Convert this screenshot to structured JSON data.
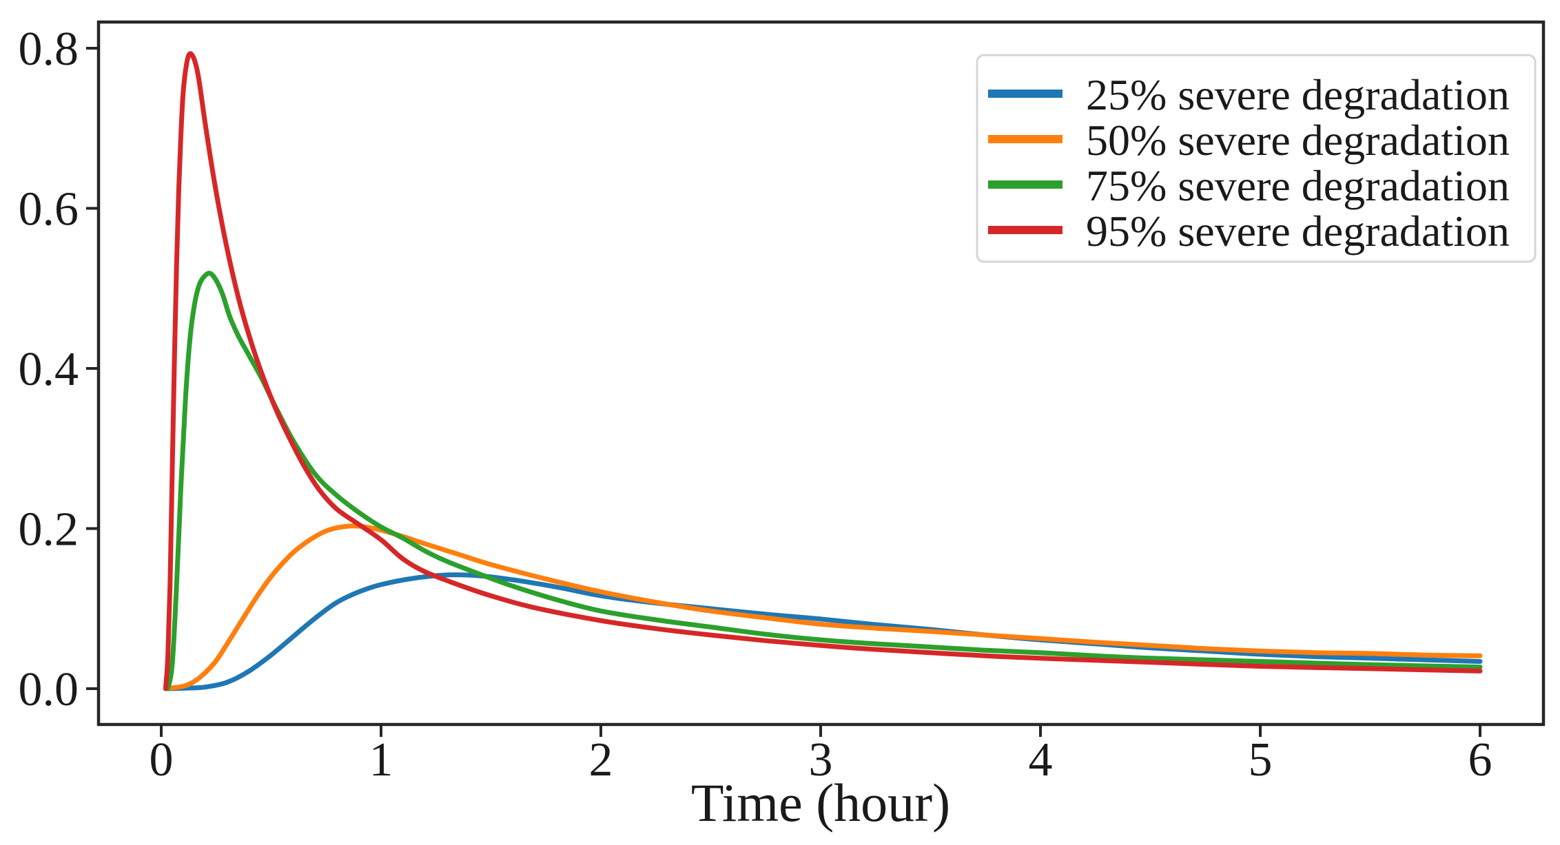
{
  "chart_data": {
    "type": "line",
    "title": "",
    "xlabel": "Time (hour)",
    "ylabel": "",
    "x_ticks": [
      "0",
      "1",
      "2",
      "3",
      "4",
      "5",
      "6"
    ],
    "x_tick_values": [
      0,
      1,
      2,
      3,
      4,
      5,
      6
    ],
    "y_ticks": [
      "0.0",
      "0.2",
      "0.4",
      "0.6",
      "0.8"
    ],
    "y_tick_values": [
      0.0,
      0.2,
      0.4,
      0.6,
      0.8
    ],
    "xlim": [
      -0.285,
      6.285
    ],
    "ylim": [
      -0.045,
      0.838
    ],
    "grid": false,
    "axis_color": "#262626",
    "legend": {
      "position": "upper right",
      "entries": [
        "25% severe degradation",
        "50% severe degradation",
        "75% severe degradation",
        "95% severe degradation"
      ]
    },
    "series": [
      {
        "name": "25% severe degradation",
        "color": "#1f77b4",
        "points": [
          [
            0.02,
            0.0
          ],
          [
            0.1,
            0.0005
          ],
          [
            0.2,
            0.002
          ],
          [
            0.3,
            0.008
          ],
          [
            0.4,
            0.022
          ],
          [
            0.5,
            0.042
          ],
          [
            0.6,
            0.065
          ],
          [
            0.7,
            0.088
          ],
          [
            0.8,
            0.108
          ],
          [
            0.9,
            0.121
          ],
          [
            1.0,
            0.13
          ],
          [
            1.15,
            0.138
          ],
          [
            1.3,
            0.142
          ],
          [
            1.45,
            0.141
          ],
          [
            1.6,
            0.136
          ],
          [
            1.8,
            0.127
          ],
          [
            2.0,
            0.116
          ],
          [
            2.25,
            0.107
          ],
          [
            2.5,
            0.1
          ],
          [
            2.75,
            0.093
          ],
          [
            3.0,
            0.087
          ],
          [
            3.25,
            0.08
          ],
          [
            3.5,
            0.074
          ],
          [
            3.75,
            0.067
          ],
          [
            4.0,
            0.061
          ],
          [
            4.25,
            0.056
          ],
          [
            4.5,
            0.051
          ],
          [
            4.75,
            0.047
          ],
          [
            5.0,
            0.043
          ],
          [
            5.25,
            0.04
          ],
          [
            5.5,
            0.038
          ],
          [
            5.75,
            0.036
          ],
          [
            6.0,
            0.034
          ]
        ]
      },
      {
        "name": "50% severe degradation",
        "color": "#ff7f0e",
        "points": [
          [
            0.02,
            0.0
          ],
          [
            0.1,
            0.003
          ],
          [
            0.15,
            0.009
          ],
          [
            0.2,
            0.02
          ],
          [
            0.25,
            0.035
          ],
          [
            0.3,
            0.056
          ],
          [
            0.35,
            0.078
          ],
          [
            0.4,
            0.1
          ],
          [
            0.45,
            0.121
          ],
          [
            0.5,
            0.14
          ],
          [
            0.55,
            0.156
          ],
          [
            0.6,
            0.17
          ],
          [
            0.65,
            0.181
          ],
          [
            0.7,
            0.19
          ],
          [
            0.75,
            0.197
          ],
          [
            0.8,
            0.201
          ],
          [
            0.85,
            0.203
          ],
          [
            0.9,
            0.203
          ],
          [
            0.95,
            0.201
          ],
          [
            1.0,
            0.198
          ],
          [
            1.1,
            0.19
          ],
          [
            1.2,
            0.181
          ],
          [
            1.35,
            0.168
          ],
          [
            1.5,
            0.155
          ],
          [
            1.75,
            0.137
          ],
          [
            2.0,
            0.121
          ],
          [
            2.25,
            0.108
          ],
          [
            2.5,
            0.097
          ],
          [
            2.75,
            0.0885
          ],
          [
            3.0,
            0.0805
          ],
          [
            3.25,
            0.0755
          ],
          [
            3.5,
            0.0715
          ],
          [
            3.75,
            0.067
          ],
          [
            4.0,
            0.0625
          ],
          [
            4.25,
            0.058
          ],
          [
            4.5,
            0.054
          ],
          [
            4.75,
            0.05
          ],
          [
            5.0,
            0.047
          ],
          [
            5.25,
            0.045
          ],
          [
            5.5,
            0.044
          ],
          [
            5.75,
            0.042
          ],
          [
            6.0,
            0.041
          ]
        ]
      },
      {
        "name": "75% severe degradation",
        "color": "#2ca02c",
        "points": [
          [
            0.03,
            0.0
          ],
          [
            0.05,
            0.03
          ],
          [
            0.07,
            0.13
          ],
          [
            0.09,
            0.255
          ],
          [
            0.11,
            0.36
          ],
          [
            0.13,
            0.435
          ],
          [
            0.15,
            0.478
          ],
          [
            0.17,
            0.502
          ],
          [
            0.19,
            0.513
          ],
          [
            0.22,
            0.519
          ],
          [
            0.25,
            0.51
          ],
          [
            0.28,
            0.492
          ],
          [
            0.31,
            0.466
          ],
          [
            0.35,
            0.441
          ],
          [
            0.4,
            0.416
          ],
          [
            0.46,
            0.386
          ],
          [
            0.52,
            0.352
          ],
          [
            0.6,
            0.31
          ],
          [
            0.7,
            0.268
          ],
          [
            0.8,
            0.241
          ],
          [
            0.9,
            0.22
          ],
          [
            1.0,
            0.202
          ],
          [
            1.1,
            0.188
          ],
          [
            1.2,
            0.172
          ],
          [
            1.3,
            0.159
          ],
          [
            1.45,
            0.143
          ],
          [
            1.6,
            0.128
          ],
          [
            1.8,
            0.111
          ],
          [
            2.0,
            0.097
          ],
          [
            2.25,
            0.086
          ],
          [
            2.5,
            0.077
          ],
          [
            2.75,
            0.068
          ],
          [
            3.0,
            0.061
          ],
          [
            3.25,
            0.056
          ],
          [
            3.5,
            0.052
          ],
          [
            3.75,
            0.048
          ],
          [
            4.0,
            0.045
          ],
          [
            4.25,
            0.041
          ],
          [
            4.5,
            0.038
          ],
          [
            4.75,
            0.036
          ],
          [
            5.0,
            0.034
          ],
          [
            5.5,
            0.03
          ],
          [
            6.0,
            0.027
          ]
        ]
      },
      {
        "name": "95% severe degradation",
        "color": "#d62728",
        "points": [
          [
            0.02,
            0.0
          ],
          [
            0.03,
            0.04
          ],
          [
            0.04,
            0.13
          ],
          [
            0.05,
            0.27
          ],
          [
            0.06,
            0.41
          ],
          [
            0.07,
            0.53
          ],
          [
            0.08,
            0.625
          ],
          [
            0.09,
            0.695
          ],
          [
            0.1,
            0.745
          ],
          [
            0.115,
            0.78
          ],
          [
            0.13,
            0.793
          ],
          [
            0.15,
            0.786
          ],
          [
            0.17,
            0.763
          ],
          [
            0.2,
            0.706
          ],
          [
            0.24,
            0.636
          ],
          [
            0.28,
            0.576
          ],
          [
            0.32,
            0.524
          ],
          [
            0.36,
            0.479
          ],
          [
            0.41,
            0.432
          ],
          [
            0.46,
            0.392
          ],
          [
            0.52,
            0.35
          ],
          [
            0.58,
            0.315
          ],
          [
            0.65,
            0.278
          ],
          [
            0.72,
            0.248
          ],
          [
            0.8,
            0.224
          ],
          [
            0.9,
            0.205
          ],
          [
            1.0,
            0.186
          ],
          [
            1.1,
            0.162
          ],
          [
            1.2,
            0.146
          ],
          [
            1.35,
            0.13
          ],
          [
            1.5,
            0.116
          ],
          [
            1.7,
            0.101
          ],
          [
            2.0,
            0.085
          ],
          [
            2.25,
            0.075
          ],
          [
            2.5,
            0.067
          ],
          [
            2.75,
            0.06
          ],
          [
            3.0,
            0.054
          ],
          [
            3.25,
            0.049
          ],
          [
            3.5,
            0.045
          ],
          [
            3.75,
            0.041
          ],
          [
            4.0,
            0.038
          ],
          [
            4.5,
            0.033
          ],
          [
            5.0,
            0.028
          ],
          [
            5.5,
            0.025
          ],
          [
            6.0,
            0.022
          ]
        ]
      }
    ]
  }
}
